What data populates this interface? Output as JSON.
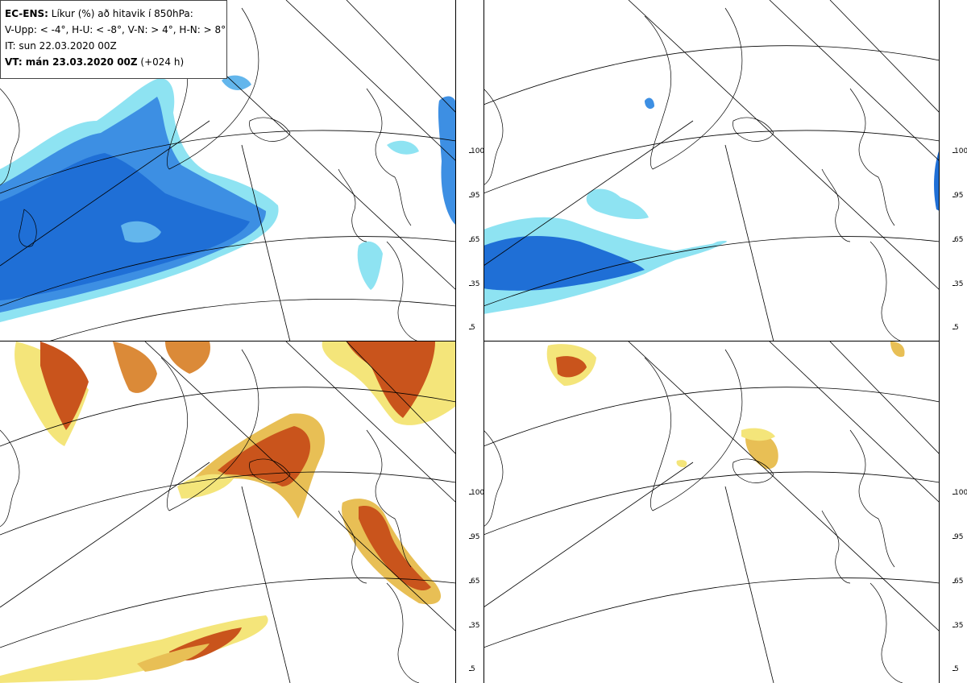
{
  "info": {
    "model": "EC-ENS:",
    "title_rest": " Líkur (%) að hitavik í 850hPa:",
    "categories_line": "V-Upp: < -4°, H-U: < -8°, V-N: > 4°, H-N: > 8°",
    "init_time": "IT: sun 22.03.2020 00Z",
    "valid_prefix": "VT: mán 23.03.2020 00Z",
    "valid_suffix": " (+024 h)"
  },
  "panels": [
    {
      "id": "top-left",
      "name": "panel-cold-4",
      "category": "V-Upp: < -4°",
      "colormap": "blue"
    },
    {
      "id": "top-right",
      "name": "panel-cold-8",
      "category": "H-U: < -8°",
      "colormap": "blue"
    },
    {
      "id": "bottom-left",
      "name": "panel-warm-4",
      "category": "V-N: > 4°",
      "colormap": "orange"
    },
    {
      "id": "bottom-right",
      "name": "panel-warm-8",
      "category": "H-N: > 8°",
      "colormap": "orange"
    }
  ],
  "colorbar": {
    "ticks": [
      "100",
      "95",
      "65",
      "35",
      "5"
    ],
    "blue_colors": [
      "#1f6fd6",
      "#3d8fe3",
      "#63b6ec",
      "#8ee3f2",
      "#b8f8fb"
    ],
    "orange_colors": [
      "#c9541c",
      "#db8a38",
      "#e8bf55",
      "#f4e57a",
      "#fdfca8"
    ]
  },
  "map": {
    "land_line_color": "#000000",
    "grid_line_color": "#000000"
  }
}
